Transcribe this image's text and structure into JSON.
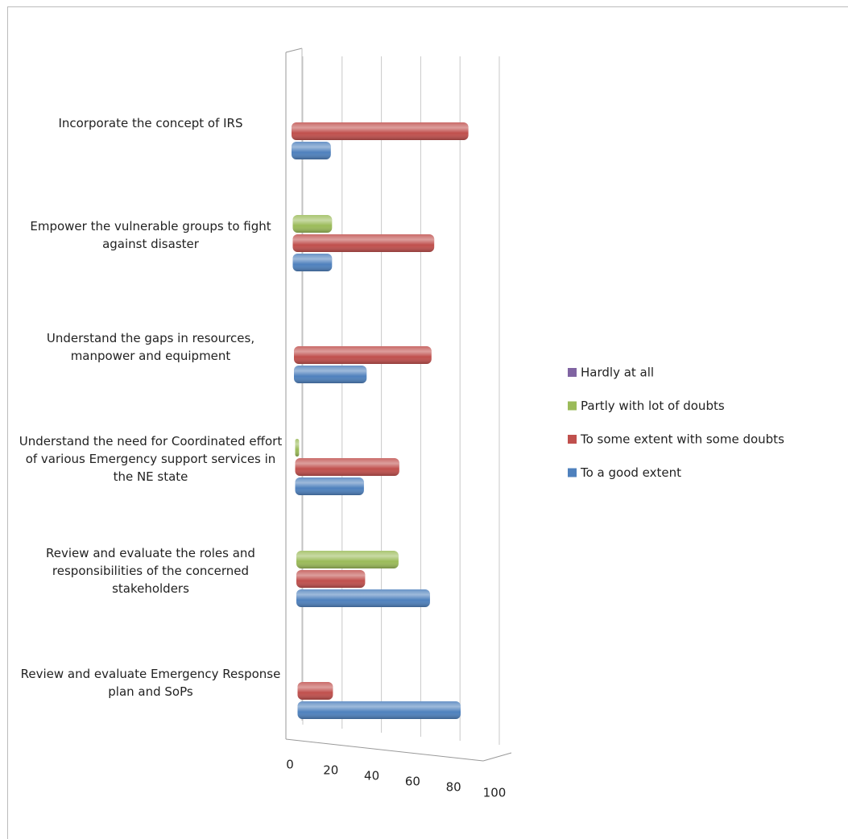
{
  "chart_data": {
    "type": "bar3d",
    "categories": [
      "Incorporate the concept of IRS",
      "Empower the vulnerable groups to fight against disaster",
      "Understand the gaps in resources, manpower and equipment",
      "Understand the need for Coordinated effort of various Emergency support services in the NE state",
      "Review and evaluate the roles and responsibilities of the concerned stakeholders",
      "Review and evaluate Emergency Response plan and SoPs"
    ],
    "series": [
      {
        "name": "Hardly at all",
        "color": "#8064a2",
        "values": [
          0,
          0,
          0,
          0,
          0,
          0
        ]
      },
      {
        "name": "Partly with lot of doubts",
        "color": "#9bbb59",
        "values": [
          0,
          20,
          0,
          2,
          52,
          0
        ]
      },
      {
        "name": "To some extent with some doubts",
        "color": "#c0504d",
        "values": [
          90,
          72,
          70,
          53,
          35,
          18
        ]
      },
      {
        "name": "To a good extent",
        "color": "#4f81bd",
        "values": [
          20,
          20,
          37,
          35,
          68,
          83
        ]
      }
    ],
    "xlim": [
      0,
      100
    ],
    "xticks": [
      0,
      20,
      40,
      60,
      80,
      100
    ],
    "grid": true
  }
}
